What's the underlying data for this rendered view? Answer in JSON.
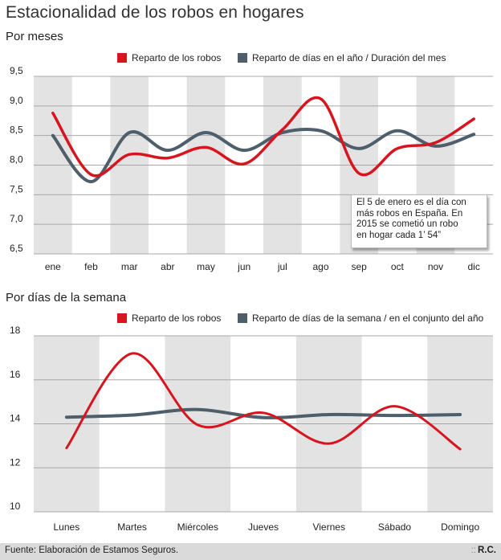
{
  "title": "Estacionalidad de los robos en hogares",
  "footer": {
    "source": "Fuente: Elaboración de Estamos Seguros.",
    "credit_prefix": "::",
    "credit": "R.C."
  },
  "chart_data": [
    {
      "type": "line",
      "title": "Por meses",
      "categories": [
        "ene",
        "feb",
        "mar",
        "abr",
        "may",
        "jun",
        "jul",
        "ago",
        "sep",
        "oct",
        "nov",
        "dic"
      ],
      "ylim": [
        6.5,
        9.5
      ],
      "yticks": [
        "6,5",
        "7,0",
        "7,5",
        "8,0",
        "8,5",
        "9,0",
        "9,5"
      ],
      "yticks_values": [
        6.5,
        7.0,
        7.5,
        8.0,
        8.5,
        9.0,
        9.5
      ],
      "grid": true,
      "legend_position": "top",
      "series": [
        {
          "name": "Reparto de los robos",
          "color": "#d7151f",
          "values": [
            8.88,
            7.84,
            8.18,
            8.12,
            8.3,
            8.02,
            8.6,
            9.12,
            7.86,
            8.28,
            8.38,
            8.78
          ]
        },
        {
          "name": "Reparto de días en el año / Duración del mes",
          "color": "#4e5f6b",
          "values": [
            8.5,
            7.72,
            8.55,
            8.25,
            8.55,
            8.25,
            8.55,
            8.58,
            8.28,
            8.58,
            8.32,
            8.52
          ]
        }
      ],
      "annotation": [
        "El 5 de enero es el día con",
        "más robos en España. En",
        "2015 se cometió un robo",
        "en hogar cada 1’ 54”"
      ]
    },
    {
      "type": "line",
      "title": "Por días de la semana",
      "categories": [
        "Lunes",
        "Martes",
        "Miércoles",
        "Jueves",
        "Viernes",
        "Sábado",
        "Domingo"
      ],
      "ylim": [
        10,
        18
      ],
      "yticks": [
        "10",
        "12",
        "14",
        "16",
        "18"
      ],
      "yticks_values": [
        10,
        12,
        14,
        16,
        18
      ],
      "grid": true,
      "legend_position": "top",
      "series": [
        {
          "name": "Reparto de los robos",
          "color": "#d7151f",
          "values": [
            12.9,
            17.2,
            13.95,
            14.5,
            13.1,
            14.8,
            12.85
          ]
        },
        {
          "name": "Reparto de días de la semana / en el conjunto del año",
          "color": "#4e5f6b",
          "values": [
            14.3,
            14.4,
            14.65,
            14.28,
            14.42,
            14.38,
            14.42
          ]
        }
      ]
    }
  ]
}
